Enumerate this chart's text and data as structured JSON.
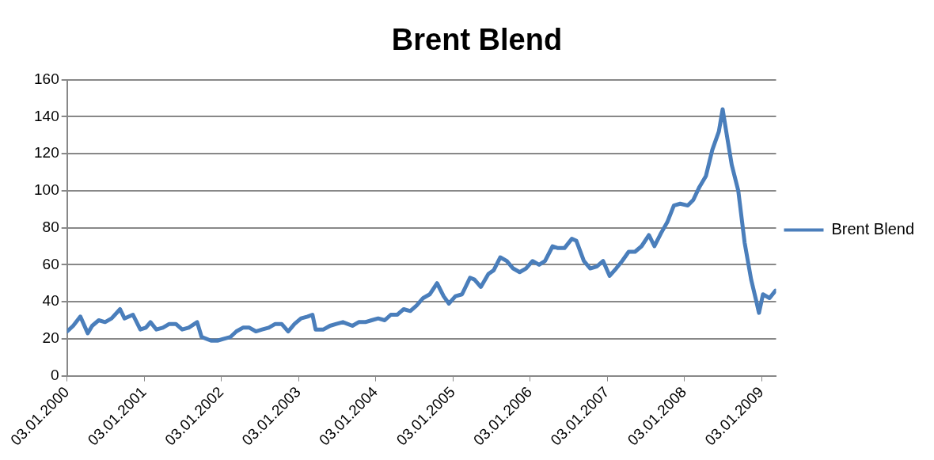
{
  "chart_data": {
    "type": "line",
    "title": "Brent Blend",
    "x": [
      "2000-01-04",
      "2000-02-01",
      "2000-03-06",
      "2000-04-10",
      "2000-05-01",
      "2000-06-01",
      "2000-07-01",
      "2000-08-01",
      "2000-09-10",
      "2000-10-01",
      "2000-11-10",
      "2000-12-15",
      "2001-01-10",
      "2001-02-01",
      "2001-03-01",
      "2001-04-01",
      "2001-05-01",
      "2001-06-01",
      "2001-07-01",
      "2001-08-01",
      "2001-09-10",
      "2001-10-01",
      "2001-11-15",
      "2001-12-15",
      "2002-01-15",
      "2002-02-15",
      "2002-03-15",
      "2002-04-15",
      "2002-05-15",
      "2002-06-15",
      "2002-07-15",
      "2002-08-15",
      "2002-09-15",
      "2002-10-15",
      "2002-11-15",
      "2002-12-15",
      "2003-01-15",
      "2003-02-15",
      "2003-03-10",
      "2003-03-25",
      "2003-05-01",
      "2003-06-01",
      "2003-07-01",
      "2003-08-01",
      "2003-09-15",
      "2003-10-15",
      "2003-11-15",
      "2003-12-15",
      "2004-01-15",
      "2004-02-15",
      "2004-03-15",
      "2004-04-15",
      "2004-05-15",
      "2004-06-15",
      "2004-07-15",
      "2004-08-15",
      "2004-09-15",
      "2004-10-20",
      "2004-11-20",
      "2004-12-15",
      "2005-01-15",
      "2005-02-15",
      "2005-03-25",
      "2005-04-15",
      "2005-05-15",
      "2005-06-20",
      "2005-07-15",
      "2005-08-15",
      "2005-09-15",
      "2005-10-15",
      "2005-11-15",
      "2005-12-15",
      "2006-01-15",
      "2006-02-15",
      "2006-03-15",
      "2006-04-20",
      "2006-05-15",
      "2006-06-15",
      "2006-07-20",
      "2006-08-10",
      "2006-09-15",
      "2006-10-15",
      "2006-11-15",
      "2006-12-15",
      "2007-01-15",
      "2007-02-15",
      "2007-03-15",
      "2007-04-15",
      "2007-05-15",
      "2007-06-15",
      "2007-07-20",
      "2007-08-15",
      "2007-09-15",
      "2007-10-15",
      "2007-11-15",
      "2007-12-15",
      "2008-01-20",
      "2008-02-15",
      "2008-03-15",
      "2008-04-15",
      "2008-05-15",
      "2008-06-15",
      "2008-07-03",
      "2008-07-20",
      "2008-08-15",
      "2008-09-15",
      "2008-10-15",
      "2008-11-15",
      "2008-12-10",
      "2008-12-22",
      "2009-01-10",
      "2009-02-10",
      "2009-03-10"
    ],
    "series": [
      {
        "name": "Brent Blend",
        "color": "#4a7ebb",
        "values": [
          24,
          27,
          32,
          23,
          27,
          30,
          29,
          31,
          36,
          31,
          33,
          25,
          26,
          29,
          25,
          26,
          28,
          28,
          25,
          26,
          29,
          21,
          19,
          19,
          20,
          21,
          24,
          26,
          26,
          24,
          25,
          26,
          28,
          28,
          24,
          28,
          31,
          32,
          33,
          25,
          25,
          27,
          28,
          29,
          27,
          29,
          29,
          30,
          31,
          30,
          33,
          33,
          36,
          35,
          38,
          42,
          44,
          50,
          43,
          39,
          43,
          44,
          53,
          52,
          48,
          55,
          57,
          64,
          62,
          58,
          56,
          58,
          62,
          60,
          62,
          70,
          69,
          69,
          74,
          73,
          62,
          58,
          59,
          62,
          54,
          58,
          62,
          67,
          67,
          70,
          76,
          70,
          77,
          83,
          92,
          93,
          92,
          95,
          102,
          108,
          122,
          132,
          144,
          132,
          114,
          100,
          72,
          52,
          40,
          34,
          44,
          42,
          46
        ]
      }
    ],
    "xlim": [
      "2000-01-03",
      "2009-03-13"
    ],
    "xticks": [
      {
        "value": "2000-01-03",
        "label": "03.01.2000"
      },
      {
        "value": "2001-01-03",
        "label": "03.01.2001"
      },
      {
        "value": "2002-01-03",
        "label": "03.01.2002"
      },
      {
        "value": "2003-01-03",
        "label": "03.01.2003"
      },
      {
        "value": "2004-01-03",
        "label": "03.01.2004"
      },
      {
        "value": "2005-01-03",
        "label": "03.01.2005"
      },
      {
        "value": "2006-01-03",
        "label": "03.01.2006"
      },
      {
        "value": "2007-01-03",
        "label": "03.01.2007"
      },
      {
        "value": "2008-01-03",
        "label": "03.01.2008"
      },
      {
        "value": "2009-01-03",
        "label": "03.01.2009"
      }
    ],
    "ylim": [
      0,
      160
    ],
    "yticks": [
      0,
      20,
      40,
      60,
      80,
      100,
      120,
      140,
      160
    ],
    "grid": "y",
    "legend": "right",
    "marker": "none",
    "line_style": "solid"
  }
}
